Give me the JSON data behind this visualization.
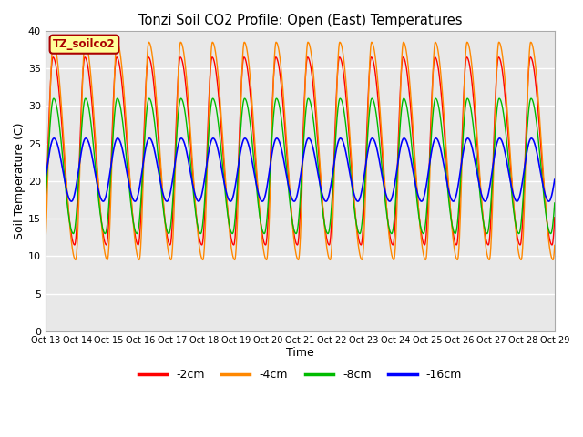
{
  "title": "Tonzi Soil CO2 Profile: Open (East) Temperatures",
  "xlabel": "Time",
  "ylabel": "Soil Temperature (C)",
  "ylim": [
    0,
    40
  ],
  "yticks": [
    0,
    5,
    10,
    15,
    20,
    25,
    30,
    35,
    40
  ],
  "legend_label": "TZ_soilco2",
  "series_labels": [
    "-2cm",
    "-4cm",
    "-8cm",
    "-16cm"
  ],
  "series_colors": [
    "#ff0000",
    "#ff8800",
    "#00bb00",
    "#0000ff"
  ],
  "x_tick_labels": [
    "Oct 14",
    "Oct 15",
    "Oct 16",
    "Oct 17",
    "Oct 18",
    "Oct 19",
    "Oct 20",
    "Oct 21",
    "Oct 22",
    "Oct 23",
    "Oct 24",
    "Oct 25",
    "Oct 26",
    "Oct 27",
    "Oct 28",
    "Oct 29"
  ],
  "x_start_label": "Oct 13",
  "background_color": "#e8e8e8",
  "plot_bg_color": "#e8e8e8",
  "grid_color": "#ffffff"
}
